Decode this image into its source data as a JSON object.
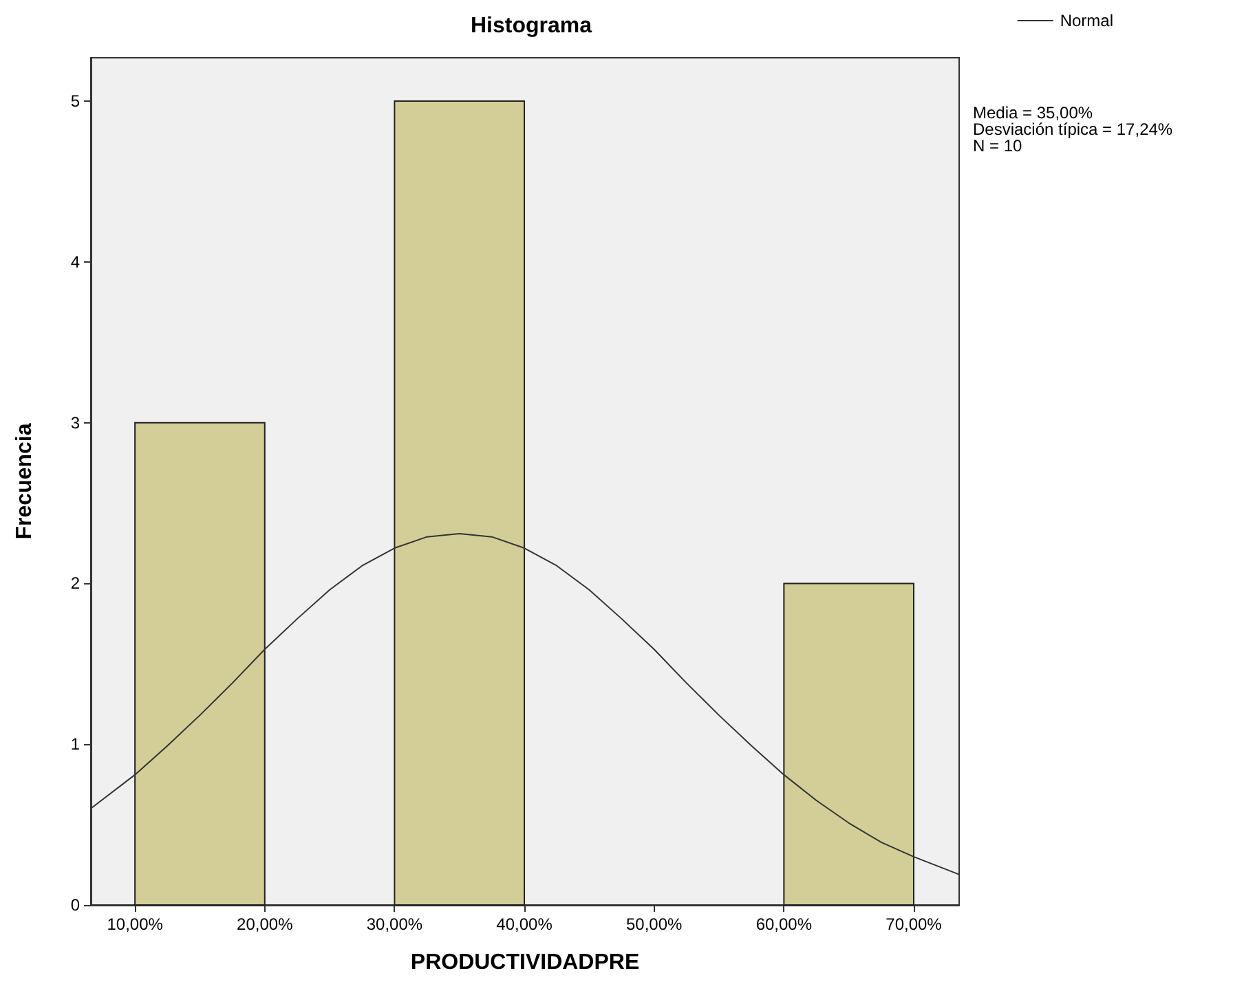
{
  "chart_data": {
    "type": "histogram",
    "title": "Histograma",
    "xlabel": "PRODUCTIVIDADPRE",
    "ylabel": "Frecuencia",
    "series": [
      {
        "bins": [
          10,
          20,
          30,
          40,
          50,
          60,
          70
        ],
        "values": [
          3,
          0,
          5,
          0,
          0,
          2
        ],
        "color": "#d3ce97"
      },
      {
        "type": "line",
        "name": "Normal",
        "color": "#333333",
        "x": [
          6.6,
          10,
          12.5,
          15,
          17.5,
          20,
          22.5,
          25,
          27.5,
          30,
          32.5,
          35,
          37.5,
          40,
          42.5,
          45,
          47.5,
          50,
          52.5,
          55,
          57.5,
          60,
          62.5,
          65,
          67.5,
          70,
          73.5
        ],
        "values": [
          0.6,
          0.81,
          0.99,
          1.18,
          1.38,
          1.59,
          1.78,
          1.96,
          2.11,
          2.22,
          2.29,
          2.31,
          2.29,
          2.22,
          2.11,
          1.96,
          1.78,
          1.59,
          1.38,
          1.18,
          0.99,
          0.81,
          0.65,
          0.51,
          0.39,
          0.3,
          0.19
        ]
      }
    ],
    "xlim": [
      6.6,
      73.5
    ],
    "xticks": [
      {
        "value": 10,
        "label": "10,00%"
      },
      {
        "value": 20,
        "label": "20,00%"
      },
      {
        "value": 30,
        "label": "30,00%"
      },
      {
        "value": 40,
        "label": "40,00%"
      },
      {
        "value": 50,
        "label": "50,00%"
      },
      {
        "value": 60,
        "label": "60,00%"
      },
      {
        "value": 70,
        "label": "70,00%"
      }
    ],
    "ylim": [
      0,
      5.27
    ],
    "yticks": [
      0,
      1,
      2,
      3,
      4,
      5
    ],
    "legend": "top right",
    "marker": "none",
    "line_style": "solid",
    "annotations": [
      "Media = 35,00%",
      "Desviación típica = 17,24%",
      "N = 10"
    ]
  }
}
